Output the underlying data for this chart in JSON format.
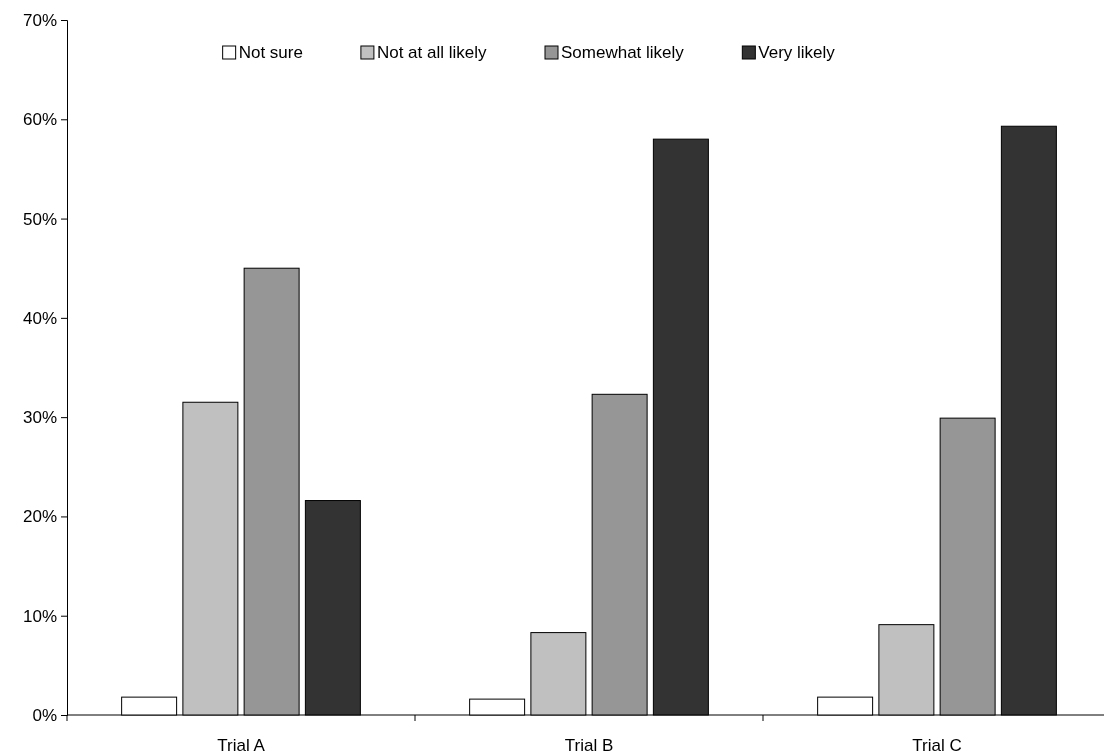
{
  "chart_data": {
    "type": "bar",
    "categories": [
      "Trial A",
      "Trial B",
      "Trial C"
    ],
    "series": [
      {
        "name": "Not sure",
        "color": "#ffffff",
        "values": [
          1.8,
          1.6,
          1.8
        ]
      },
      {
        "name": "Not at all likely",
        "color": "#c0c0c0",
        "values": [
          31.5,
          8.3,
          9.1
        ]
      },
      {
        "name": "Somewhat likely",
        "color": "#969696",
        "values": [
          45.0,
          32.3,
          29.9
        ]
      },
      {
        "name": "Very likely",
        "color": "#333333",
        "values": [
          21.6,
          58.0,
          59.3
        ]
      }
    ],
    "ylim": [
      0,
      70
    ],
    "yticks": [
      {
        "value": 0,
        "label": "0%"
      },
      {
        "value": 10,
        "label": "10%"
      },
      {
        "value": 20,
        "label": "20%"
      },
      {
        "value": 30,
        "label": "30%"
      },
      {
        "value": 40,
        "label": "40%"
      },
      {
        "value": 50,
        "label": "50%"
      },
      {
        "value": 60,
        "label": "60%"
      },
      {
        "value": 70,
        "label": "70%"
      }
    ],
    "legend": "top",
    "grid": false
  }
}
